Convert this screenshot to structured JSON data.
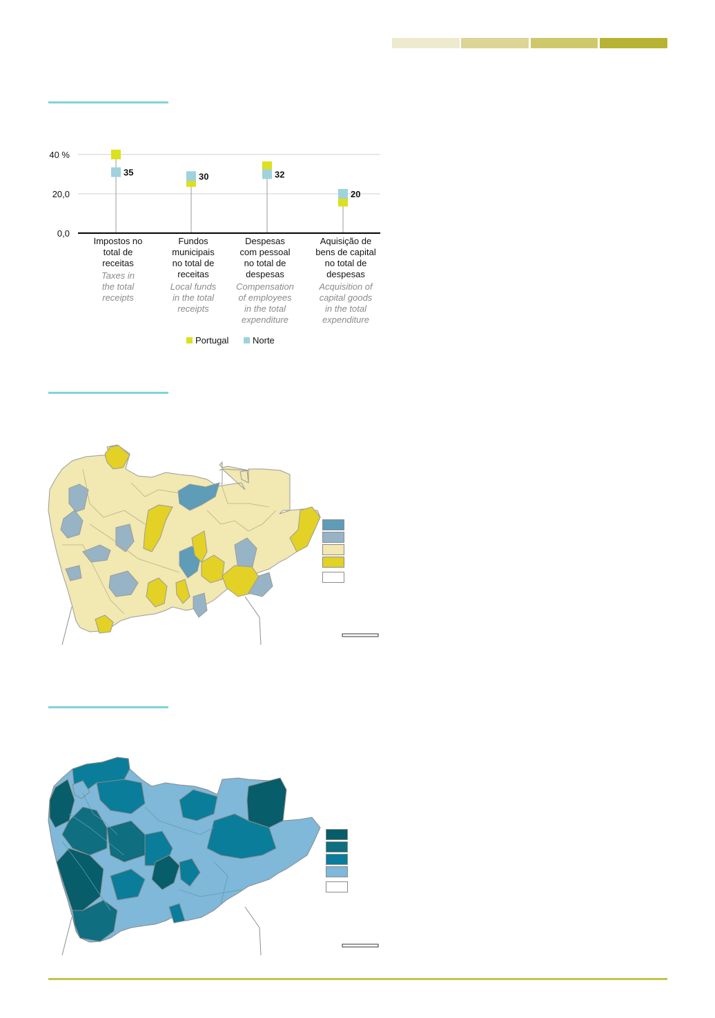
{
  "header_band": {
    "colors": [
      "#eeead0",
      "#dcd596",
      "#cfc86b",
      "#b8b333"
    ]
  },
  "chart_data": {
    "type": "dot",
    "ylim": [
      0,
      40
    ],
    "yticks": [
      {
        "value": 0,
        "label": "0,0"
      },
      {
        "value": 20,
        "label": "20,0"
      },
      {
        "value": 40,
        "label": "40 %"
      }
    ],
    "categories": [
      {
        "pt": "Impostos no\ntotal de\nreceitas",
        "en": "Taxes in\nthe total\nreceipts"
      },
      {
        "pt": "Fundos\nmunicipais\nno total de\nreceitas",
        "en": "Local funds\nin the total\nreceipts"
      },
      {
        "pt": "Despesas\ncom pessoal\nno total de\ndespesas",
        "en": "Compensation\nof employees\nin the total\nexpenditure"
      },
      {
        "pt": "Aquisição de\nbens de capital\nno total de\ndespesas",
        "en": "Acquisition of\ncapital goods\nin the total\nexpenditure"
      }
    ],
    "series": [
      {
        "name": "Portugal",
        "color": "#dce01e",
        "values": [
          40,
          26,
          34,
          16
        ]
      },
      {
        "name": "Norte",
        "color": "#9fd2dc",
        "values": [
          31,
          29,
          30,
          20
        ]
      }
    ],
    "data_labels": [
      "35",
      "30",
      "32",
      "20"
    ]
  },
  "legend": [
    {
      "label": "Portugal",
      "color": "#dce01e"
    },
    {
      "label": "Norte",
      "color": "#9fd2dc"
    }
  ],
  "map1": {
    "legend_colors": [
      "#5e9cb8",
      "#97b4c6",
      "#f1e8b2",
      "#e3d126",
      "#ffffff"
    ],
    "region_colors": {
      "base": "#f1e8b2",
      "yellow": "#e3d126",
      "blue": "#5e9cb8",
      "grey": "#97b4c6"
    }
  },
  "map2": {
    "legend_colors": [
      "#075d6a",
      "#0f6e80",
      "#0a7d9a",
      "#7fb8d9",
      "#ffffff"
    ],
    "region_colors": {
      "dark": "#075d6a",
      "mid": "#0f6e80",
      "teal": "#0a7d9a",
      "light": "#7fb8d9"
    }
  }
}
